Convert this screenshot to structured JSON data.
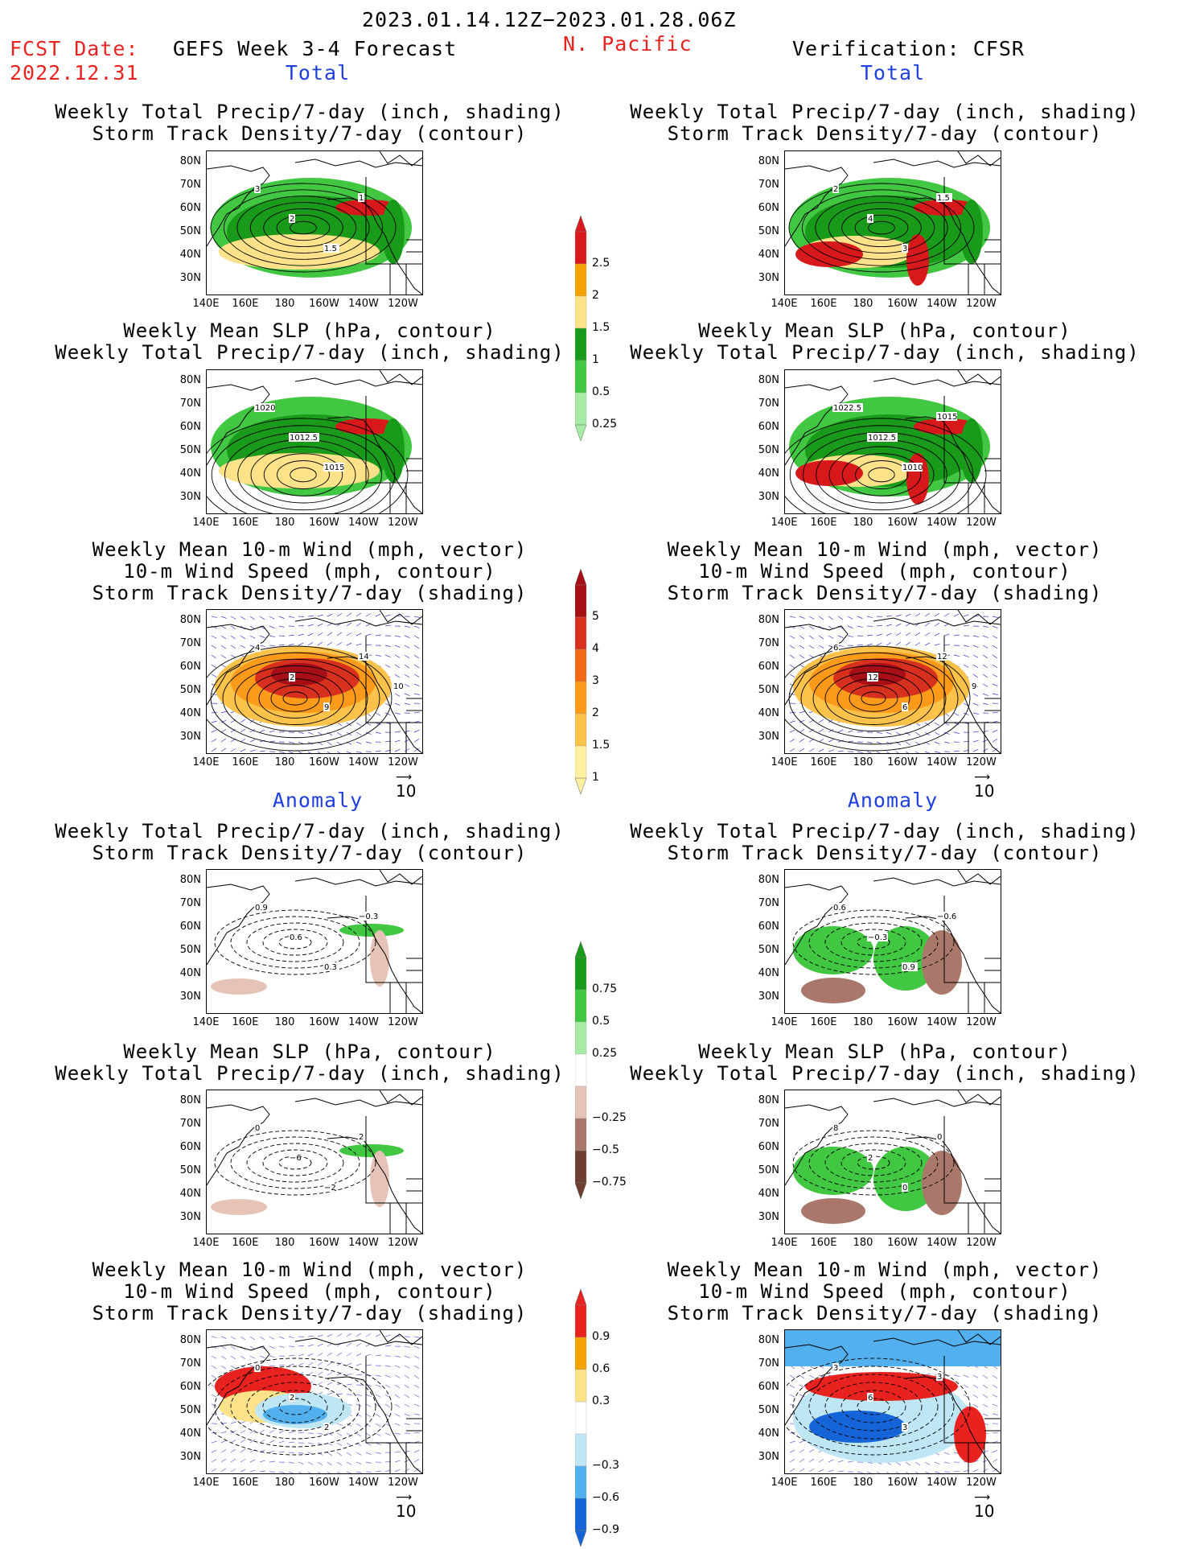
{
  "header": {
    "date_range": "2023.01.14.12Z−2023.01.28.06Z",
    "fcst_label": "FCST Date:",
    "fcst_date": "2022.12.31",
    "forecast_title": "GEFS Week 3-4 Forecast",
    "region": "N. Pacific",
    "verification": "Verification: CFSR"
  },
  "sections": {
    "total": "Total",
    "anomaly": "Anomaly"
  },
  "panel_titles": {
    "precip_storm": [
      "Weekly Total Precip/7-day (inch, shading)",
      "Storm Track Density/7-day (contour)"
    ],
    "slp_precip": [
      "Weekly Mean SLP (hPa, contour)",
      "Weekly Total Precip/7-day (inch, shading)"
    ],
    "wind_storm": [
      "Weekly Mean 10-m Wind (mph, vector)",
      "10-m Wind Speed (mph, contour)",
      "Storm Track Density/7-day (shading)"
    ]
  },
  "axes": {
    "lat_ticks": [
      "80N",
      "70N",
      "60N",
      "50N",
      "40N",
      "30N"
    ],
    "lon_ticks": [
      "140E",
      "160E",
      "180",
      "160W",
      "140W",
      "120W"
    ]
  },
  "vector_reference": "10",
  "colorbars": {
    "precip_total": {
      "labels": [
        "2.5",
        "2",
        "1.5",
        "1",
        "0.5",
        "0.25"
      ],
      "colors": [
        "#d7191c",
        "#f5a300",
        "#fde28a",
        "#1a9a1a",
        "#41c741",
        "#a6eba6"
      ]
    },
    "storm_total": {
      "labels": [
        "5",
        "4",
        "3",
        "2",
        "1.5",
        "1"
      ],
      "colors": [
        "#a50f15",
        "#d7301f",
        "#f16913",
        "#fd9a1a",
        "#fdc24a",
        "#fff0a0"
      ]
    },
    "precip_anom": {
      "labels": [
        "0.75",
        "0.5",
        "0.25",
        "−0.25",
        "−0.5",
        "−0.75"
      ],
      "colors": [
        "#1a9a1a",
        "#41c741",
        "#a6eba6",
        "#ffffff",
        "#e5c3b7",
        "#a9786a",
        "#6e3f30"
      ]
    },
    "storm_anom": {
      "labels": [
        "0.9",
        "0.6",
        "0.3",
        "−0.3",
        "−0.6",
        "−0.9"
      ],
      "colors": [
        "#e8231f",
        "#f5a300",
        "#fde28a",
        "#ffffff",
        "#bfe6f5",
        "#52b0ee",
        "#1565d8"
      ]
    }
  },
  "contour_labels": {
    "p1_left": [
      "3",
      "2",
      "1.5",
      "1"
    ],
    "p1_right": [
      "2",
      "4",
      "3",
      "1.5"
    ],
    "p2_left": [
      "1020",
      "1012.5",
      "1015"
    ],
    "p2_right": [
      "1022.5",
      "1012.5",
      "1010",
      "1015"
    ],
    "p3_left": [
      "4",
      "2",
      "9",
      "14",
      "10"
    ],
    "p3_right": [
      "6",
      "12",
      "6",
      "12",
      "9"
    ],
    "p4_left": [
      "0.9",
      "0.6",
      "0.3",
      "−0.3"
    ],
    "p4_right": [
      "0.6",
      "−0.3",
      "0.9",
      "−0.6"
    ],
    "p5_left": [
      "0",
      "−6",
      "−2",
      "2"
    ],
    "p5_right": [
      "8",
      "2",
      "0",
      "0"
    ],
    "p6_left": [
      "0",
      "2",
      "2"
    ],
    "p6_right": [
      "3",
      "6",
      "3",
      "3"
    ]
  }
}
